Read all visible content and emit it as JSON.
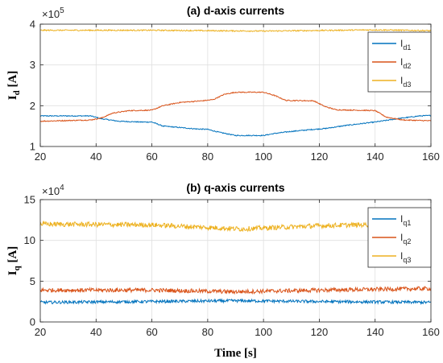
{
  "chart_data": [
    {
      "type": "line",
      "title": "(a) d-axis currents",
      "ylabel_main": "I",
      "ylabel_sub": "d",
      "ylabel_unit": " [A]",
      "exponent_base": "×10",
      "exponent_power": "5",
      "xlim": [
        20,
        160
      ],
      "ylim": [
        1,
        4
      ],
      "xticks": [
        "20",
        "40",
        "60",
        "80",
        "100",
        "120",
        "140",
        "160"
      ],
      "yticks": [
        "1",
        "2",
        "3",
        "4"
      ],
      "grid": true,
      "legend_position": "top-right",
      "series": [
        {
          "name": "I",
          "sub": "d1",
          "color": "#0072BD",
          "noise": 0.012,
          "x": [
            20,
            38,
            42,
            48,
            56,
            60,
            64,
            76,
            80,
            84,
            90,
            100,
            104,
            110,
            118,
            122,
            130,
            140,
            150,
            156,
            160
          ],
          "y": [
            1.75,
            1.75,
            1.68,
            1.62,
            1.6,
            1.6,
            1.5,
            1.43,
            1.42,
            1.35,
            1.27,
            1.27,
            1.32,
            1.37,
            1.42,
            1.44,
            1.52,
            1.6,
            1.7,
            1.75,
            1.76
          ]
        },
        {
          "name": "I",
          "sub": "d2",
          "color": "#D95319",
          "noise": 0.012,
          "x": [
            20,
            38,
            42,
            46,
            52,
            60,
            64,
            70,
            78,
            82,
            86,
            90,
            100,
            104,
            108,
            118,
            122,
            126,
            140,
            144,
            150,
            160
          ],
          "y": [
            1.62,
            1.65,
            1.7,
            1.82,
            1.88,
            1.89,
            2.0,
            2.08,
            2.12,
            2.15,
            2.28,
            2.33,
            2.33,
            2.25,
            2.13,
            2.12,
            1.98,
            1.9,
            1.88,
            1.72,
            1.65,
            1.63
          ]
        },
        {
          "name": "I",
          "sub": "d3",
          "color": "#EDB120",
          "noise": 0.015,
          "x": [
            20,
            60,
            100,
            140,
            160
          ],
          "y": [
            3.85,
            3.85,
            3.83,
            3.86,
            3.84
          ]
        }
      ]
    },
    {
      "type": "line",
      "title": "(b) q-axis currents",
      "xlabel": "Time [s]",
      "ylabel_main": "I",
      "ylabel_sub": "q",
      "ylabel_unit": " [A]",
      "exponent_base": "×10",
      "exponent_power": "4",
      "xlim": [
        20,
        160
      ],
      "ylim": [
        0,
        15
      ],
      "xticks": [
        "20",
        "40",
        "60",
        "80",
        "100",
        "120",
        "140",
        "160"
      ],
      "yticks": [
        "0",
        "5",
        "10",
        "15"
      ],
      "grid": true,
      "legend_position": "top-right",
      "series": [
        {
          "name": "I",
          "sub": "q1",
          "color": "#0072BD",
          "noise": 0.18,
          "x": [
            20,
            60,
            90,
            120,
            160
          ],
          "y": [
            2.4,
            2.5,
            2.6,
            2.5,
            2.4
          ]
        },
        {
          "name": "I",
          "sub": "q2",
          "color": "#D95319",
          "noise": 0.25,
          "x": [
            20,
            60,
            90,
            120,
            160
          ],
          "y": [
            3.9,
            3.9,
            3.7,
            3.9,
            4.1
          ]
        },
        {
          "name": "I",
          "sub": "q3",
          "color": "#EDB120",
          "noise": 0.3,
          "x": [
            20,
            60,
            92,
            120,
            160
          ],
          "y": [
            12.0,
            11.9,
            11.4,
            11.8,
            12.1
          ]
        }
      ]
    }
  ]
}
